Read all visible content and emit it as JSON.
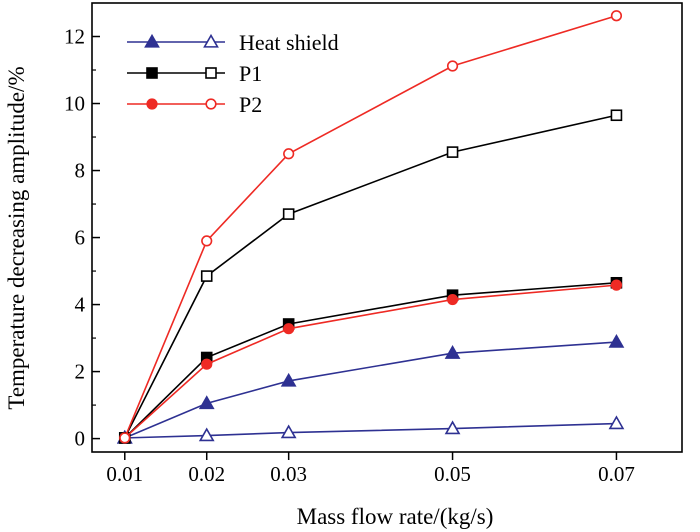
{
  "chart_data": {
    "type": "line",
    "xlabel": "Mass flow rate/(kg/s)",
    "ylabel": "Temperature decreasing amplitude/%",
    "x": [
      0.01,
      0.02,
      0.03,
      0.05,
      0.07
    ],
    "x_tick_labels": [
      "0.01",
      "0.02",
      "0.03",
      "0.05",
      "0.07"
    ],
    "y_ticks": [
      0,
      2,
      4,
      6,
      8,
      10,
      12
    ],
    "y_tick_labels": [
      "0",
      "2",
      "4",
      "6",
      "8",
      "10",
      "12"
    ],
    "xlim": [
      0.006,
      0.078
    ],
    "ylim": [
      -0.4,
      13
    ],
    "grid": false,
    "legend_position": "top-left",
    "series": [
      {
        "name": "Heat shield",
        "marker": "triangle",
        "fill": "filled",
        "color": "#2e3192",
        "values": [
          0.02,
          1.05,
          1.72,
          2.55,
          2.88
        ]
      },
      {
        "name": "Heat shield",
        "marker": "triangle",
        "fill": "open",
        "color": "#2e3192",
        "values": [
          0.02,
          0.09,
          0.18,
          0.3,
          0.45
        ],
        "legend_shared": true
      },
      {
        "name": "P1",
        "marker": "square",
        "fill": "filled",
        "color": "#000000",
        "values": [
          0.02,
          2.42,
          3.42,
          4.28,
          4.65
        ]
      },
      {
        "name": "P1",
        "marker": "square",
        "fill": "open",
        "color": "#000000",
        "values": [
          0.02,
          4.85,
          6.7,
          8.55,
          9.65
        ],
        "legend_shared": true
      },
      {
        "name": "P2",
        "marker": "circle",
        "fill": "filled",
        "color": "#ee2a24",
        "values": [
          0.02,
          2.22,
          3.28,
          4.15,
          4.58
        ]
      },
      {
        "name": "P2",
        "marker": "circle",
        "fill": "open",
        "color": "#ee2a24",
        "values": [
          0.02,
          5.9,
          8.5,
          11.12,
          12.62
        ],
        "legend_shared": true
      }
    ],
    "legend": [
      {
        "name": "Heat shield",
        "marker": "triangle",
        "color": "#2e3192"
      },
      {
        "name": "P1",
        "marker": "square",
        "color": "#000000"
      },
      {
        "name": "P2",
        "marker": "circle",
        "color": "#ee2a24"
      }
    ]
  }
}
